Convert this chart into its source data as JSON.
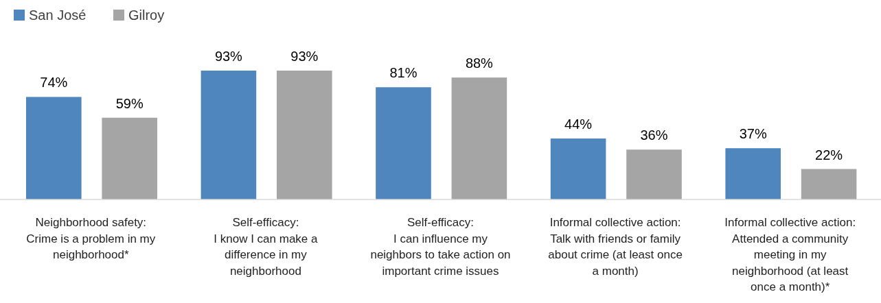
{
  "chart_data": {
    "type": "bar",
    "categories": [
      "Neighborhood safety:\nCrime is a problem in my\nneighborhood*",
      "Self-efficacy:\nI know I can make a\ndifference in my\nneighborhood",
      "Self-efficacy:\nI can influence my\nneighbors to take action on\nimportant crime issues",
      "Informal collective action:\nTalk with friends or family\nabout crime (at least once\na month)",
      "Informal collective action:\nAttended a community\nmeeting in my\nneighborhood (at least\nonce a month)*"
    ],
    "series": [
      {
        "name": "San José",
        "color": "#4f86bd",
        "values": [
          74,
          93,
          81,
          44,
          37
        ],
        "value_labels": [
          "74%",
          "93%",
          "81%",
          "44%",
          "37%"
        ]
      },
      {
        "name": "Gilroy",
        "color": "#a5a5a5",
        "values": [
          59,
          93,
          88,
          36,
          22
        ],
        "value_labels": [
          "59%",
          "93%",
          "88%",
          "36%",
          "22%"
        ]
      }
    ],
    "legend": "top left"
  }
}
